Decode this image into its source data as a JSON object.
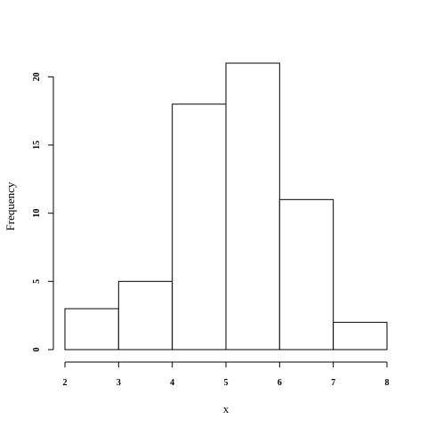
{
  "chart_data": {
    "type": "bar",
    "histogram": true,
    "title": "",
    "xlabel": "x",
    "ylabel": "Frequency",
    "bins": [
      {
        "start": 2,
        "end": 3,
        "count": 3
      },
      {
        "start": 3,
        "end": 4,
        "count": 5
      },
      {
        "start": 4,
        "end": 5,
        "count": 18
      },
      {
        "start": 5,
        "end": 6,
        "count": 21
      },
      {
        "start": 6,
        "end": 7,
        "count": 11
      },
      {
        "start": 7,
        "end": 8,
        "count": 2
      }
    ],
    "xlim": [
      2,
      8
    ],
    "ylim": [
      0,
      21
    ],
    "x_ticks": [
      "2",
      "3",
      "4",
      "5",
      "6",
      "7",
      "8"
    ],
    "y_ticks": [
      "0",
      "5",
      "10",
      "15",
      "20"
    ],
    "grid": false,
    "bar_fill": "#ffffff",
    "bar_stroke": "#000000"
  }
}
